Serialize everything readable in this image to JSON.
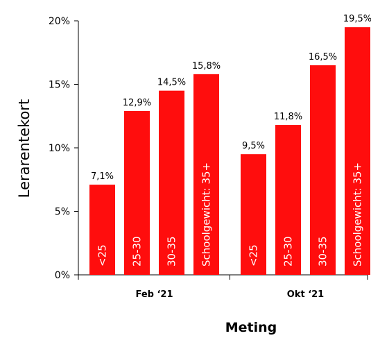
{
  "chart_data": {
    "type": "bar",
    "ylabel": "Lerarentekort",
    "xlabel": "Meting",
    "ylim": [
      0,
      20
    ],
    "yticks": [
      "0%",
      "5%",
      "10%",
      "15%",
      "20%"
    ],
    "groups": [
      {
        "name": "Feb ‘21",
        "bars": [
          {
            "category": "<25",
            "value": 7.1,
            "label": "7,1%"
          },
          {
            "category": "25-30",
            "value": 12.9,
            "label": "12,9%"
          },
          {
            "category": "30-35",
            "value": 14.5,
            "label": "14,5%"
          },
          {
            "category": "Schoolgewicht: 35+",
            "value": 15.8,
            "label": "15,8%"
          }
        ]
      },
      {
        "name": "Okt ‘21",
        "bars": [
          {
            "category": "<25",
            "value": 9.5,
            "label": "9,5%"
          },
          {
            "category": "25-30",
            "value": 11.8,
            "label": "11,8%"
          },
          {
            "category": "30-35",
            "value": 16.5,
            "label": "16,5%"
          },
          {
            "category": "Schoolgewicht: 35+",
            "value": 19.5,
            "label": "19,5%"
          }
        ]
      }
    ],
    "bar_color": "#ff0d0d",
    "grid": false,
    "legend": "none"
  }
}
